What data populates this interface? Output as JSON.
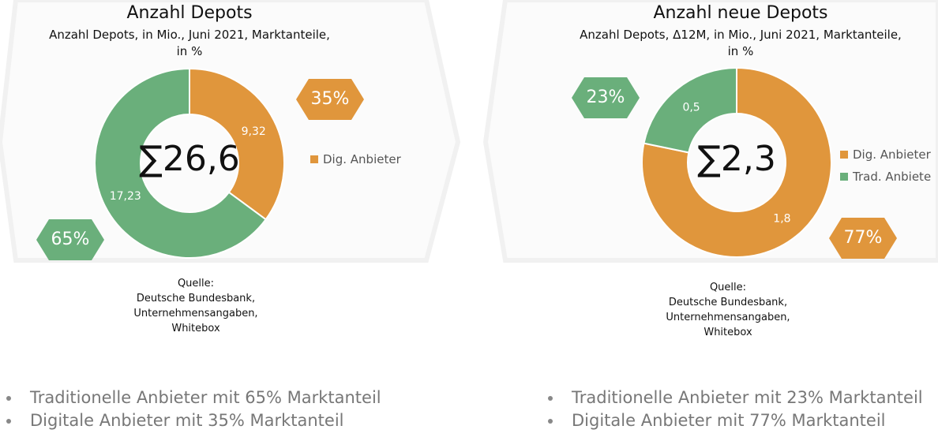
{
  "colors": {
    "orange": "#E0963C",
    "green": "#6AAF7B"
  },
  "left": {
    "title": "Anzahl Depots",
    "subtitle_line1": "Anzahl Depots, in Mio., Juni 2021, Marktanteile,",
    "subtitle_line2": "in %",
    "sum_label": "∑26,6",
    "badge_green": "65%",
    "badge_orange": "35%",
    "legend": [
      {
        "label": "Dig. Anbieter",
        "color": "#E0963C"
      }
    ],
    "source": [
      "Quelle:",
      "Deutsche Bundesbank,",
      "Unternehmensangaben,",
      "Whitebox"
    ],
    "bullets": [
      "Traditionelle Anbieter mit 65% Marktanteil",
      "Digitale Anbieter mit 35% Marktanteil"
    ]
  },
  "right": {
    "title": "Anzahl neue Depots",
    "subtitle_line1": "Anzahl Depots, Δ12M, in Mio., Juni 2021, Marktanteile,",
    "subtitle_line2": "in %",
    "sum_label": "∑2,3",
    "badge_green": "23%",
    "badge_orange": "77%",
    "legend": [
      {
        "label": "Dig. Anbieter",
        "color": "#E0963C"
      },
      {
        "label": "Trad. Anbiete",
        "color": "#6AAF7B"
      }
    ],
    "source": [
      "Quelle:",
      "Deutsche Bundesbank,",
      "Unternehmensangaben,",
      "Whitebox"
    ],
    "bullets": [
      "Traditionelle Anbieter mit 23% Marktanteil",
      "Digitale Anbieter mit 77% Marktanteil"
    ]
  },
  "chart_data": [
    {
      "type": "pie",
      "title": "Anzahl Depots",
      "categories": [
        "Dig. Anbieter",
        "Trad. Anbieter"
      ],
      "values": [
        9.32,
        17.23
      ],
      "value_labels": [
        "9,32",
        "17,23"
      ],
      "colors": [
        "#E0963C",
        "#6AAF7B"
      ]
    },
    {
      "type": "pie",
      "title": "Anzahl neue Depots",
      "categories": [
        "Dig. Anbieter",
        "Trad. Anbiete"
      ],
      "values": [
        1.8,
        0.5
      ],
      "value_labels": [
        "1,8",
        "0,5"
      ],
      "colors": [
        "#E0963C",
        "#6AAF7B"
      ]
    }
  ]
}
